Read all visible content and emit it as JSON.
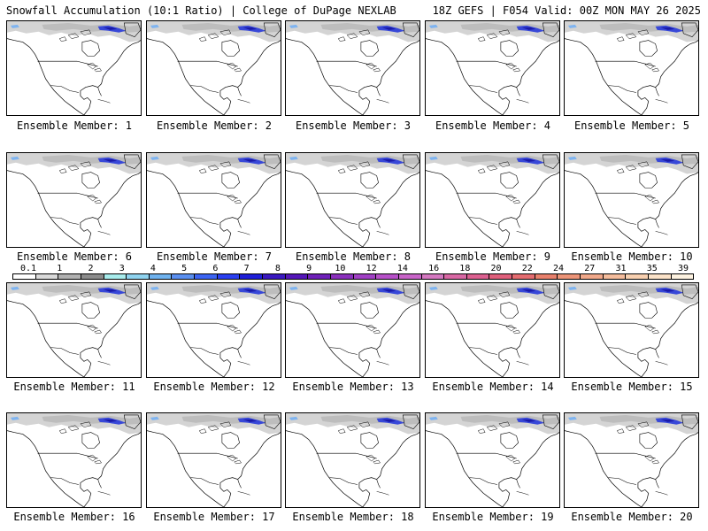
{
  "header": {
    "title_left": "Snowfall Accumulation (10:1 Ratio) | College of DuPage NEXLAB",
    "title_right": "18Z GEFS | F054 Valid: 00Z MON MAY 26 2025"
  },
  "panels": [
    {
      "label": "Ensemble Member: 1"
    },
    {
      "label": "Ensemble Member: 2"
    },
    {
      "label": "Ensemble Member: 3"
    },
    {
      "label": "Ensemble Member: 4"
    },
    {
      "label": "Ensemble Member: 5"
    },
    {
      "label": "Ensemble Member: 6"
    },
    {
      "label": "Ensemble Member: 7"
    },
    {
      "label": "Ensemble Member: 8"
    },
    {
      "label": "Ensemble Member: 9"
    },
    {
      "label": "Ensemble Member: 10"
    },
    {
      "label": "Ensemble Member: 11"
    },
    {
      "label": "Ensemble Member: 12"
    },
    {
      "label": "Ensemble Member: 13"
    },
    {
      "label": "Ensemble Member: 14"
    },
    {
      "label": "Ensemble Member: 15"
    },
    {
      "label": "Ensemble Member: 16"
    },
    {
      "label": "Ensemble Member: 17"
    },
    {
      "label": "Ensemble Member: 18"
    },
    {
      "label": "Ensemble Member: 19"
    },
    {
      "label": "Ensemble Member: 20"
    }
  ],
  "legend": {
    "labels": [
      "0.1",
      "1",
      "2",
      "3",
      "4",
      "5",
      "6",
      "7",
      "8",
      "9",
      "10",
      "12",
      "14",
      "16",
      "18",
      "20",
      "22",
      "24",
      "27",
      "31",
      "35",
      "39"
    ],
    "colors": [
      "#ffffff",
      "#d9d9d9",
      "#b0b0b0",
      "#8c8c8c",
      "#a8ecec",
      "#8fd3ef",
      "#6fb2ee",
      "#5a8ff0",
      "#3c64f2",
      "#2a3ff0",
      "#1f1fd8",
      "#3a18c0",
      "#5416b8",
      "#6e20b8",
      "#8a30bc",
      "#a040c4",
      "#b650c8",
      "#c864c8",
      "#d478c0",
      "#d868a4",
      "#dc6090",
      "#e0607c",
      "#e46c70",
      "#e8806c",
      "#ec9478",
      "#f0a88a",
      "#f4bc9c",
      "#f8d0b0",
      "#fbe2c8",
      "#fdf2e0"
    ]
  }
}
